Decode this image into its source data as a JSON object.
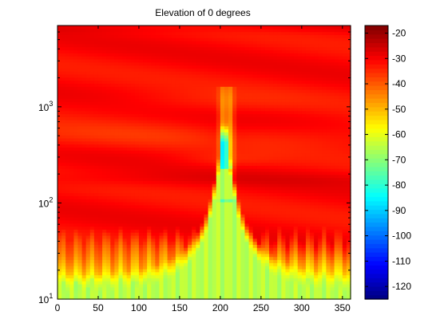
{
  "chart_data": {
    "type": "heatmap",
    "title": "Elevation of 0 degrees",
    "xlabel": "",
    "ylabel": "",
    "x_range": [
      0,
      360
    ],
    "y_range": [
      10,
      7000
    ],
    "y_scale": "log",
    "x_ticks": [
      0,
      50,
      100,
      150,
      200,
      250,
      300,
      350
    ],
    "y_ticks": [
      {
        "value": 10,
        "base": "10",
        "exp": "1"
      },
      {
        "value": 100,
        "base": "10",
        "exp": "2"
      },
      {
        "value": 1000,
        "base": "10",
        "exp": "3"
      }
    ],
    "colorbar": {
      "colormap": "jet",
      "range": [
        -125,
        -17
      ],
      "ticks": [
        -20,
        -30,
        -40,
        -50,
        -60,
        -70,
        -80,
        -90,
        -100,
        -110,
        -120
      ]
    },
    "grid": false
  }
}
